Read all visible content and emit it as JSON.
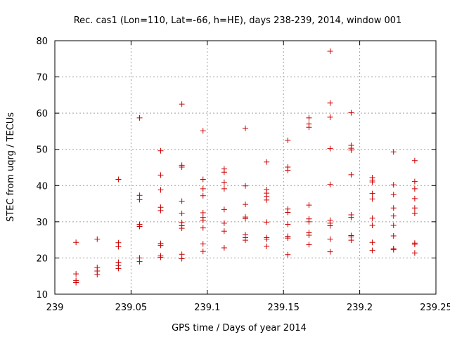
{
  "chart_data": {
    "type": "scatter",
    "title": "Rec. cas1 (Lon=110, Lat=-66, h=HE), days 238-239, 2014, window 001",
    "xlabel": "GPS time / Days of year 2014",
    "ylabel": "STEC from uqrg / TECUs",
    "xlim": [
      239,
      239.25
    ],
    "ylim": [
      10,
      80
    ],
    "xticks": [
      239,
      239.05,
      239.1,
      239.15,
      239.2,
      239.25
    ],
    "xtick_labels": [
      "239",
      "239.05",
      "239.1",
      "239.15",
      "239.2",
      "239.25"
    ],
    "yticks": [
      10,
      20,
      30,
      40,
      50,
      60,
      70,
      80
    ],
    "ytick_labels": [
      "10",
      "20",
      "30",
      "40",
      "50",
      "60",
      "70",
      "80"
    ],
    "grid": true,
    "marker": "+",
    "marker_color": "#cc0000",
    "points": [
      [
        239.0139,
        24.3
      ],
      [
        239.0139,
        15.6
      ],
      [
        239.0139,
        13.8
      ],
      [
        239.0139,
        13.2
      ],
      [
        239.0278,
        25.2
      ],
      [
        239.0278,
        17.4
      ],
      [
        239.0278,
        16.4
      ],
      [
        239.0278,
        15.4
      ],
      [
        239.0417,
        41.7
      ],
      [
        239.0417,
        24.2
      ],
      [
        239.0417,
        23.1
      ],
      [
        239.0417,
        18.8
      ],
      [
        239.0417,
        17.9
      ],
      [
        239.0417,
        17.1
      ],
      [
        239.0556,
        58.7
      ],
      [
        239.0556,
        37.3
      ],
      [
        239.0556,
        36.1
      ],
      [
        239.0556,
        29.3
      ],
      [
        239.0556,
        28.7
      ],
      [
        239.0556,
        20.0
      ],
      [
        239.0556,
        19.0
      ],
      [
        239.0694,
        49.6
      ],
      [
        239.0694,
        42.9
      ],
      [
        239.0694,
        38.8
      ],
      [
        239.0694,
        34.0
      ],
      [
        239.0694,
        33.1
      ],
      [
        239.0694,
        24.0
      ],
      [
        239.0694,
        23.5
      ],
      [
        239.0694,
        20.6
      ],
      [
        239.0694,
        20.2
      ],
      [
        239.0833,
        62.5
      ],
      [
        239.0833,
        45.6
      ],
      [
        239.0833,
        45.1
      ],
      [
        239.0833,
        35.7
      ],
      [
        239.0833,
        32.3
      ],
      [
        239.0833,
        29.8
      ],
      [
        239.0833,
        28.9
      ],
      [
        239.0833,
        28.2
      ],
      [
        239.0833,
        21.0
      ],
      [
        239.0833,
        19.8
      ],
      [
        239.0972,
        55.1
      ],
      [
        239.0972,
        41.7
      ],
      [
        239.0972,
        39.1
      ],
      [
        239.0972,
        37.2
      ],
      [
        239.0972,
        32.5
      ],
      [
        239.0972,
        31.2
      ],
      [
        239.0972,
        30.4
      ],
      [
        239.0972,
        28.3
      ],
      [
        239.0972,
        23.9
      ],
      [
        239.0972,
        21.8
      ],
      [
        239.1111,
        44.6
      ],
      [
        239.1111,
        43.7
      ],
      [
        239.1111,
        40.9
      ],
      [
        239.1111,
        39.1
      ],
      [
        239.1111,
        33.4
      ],
      [
        239.1111,
        29.6
      ],
      [
        239.1111,
        27.4
      ],
      [
        239.1111,
        22.8
      ],
      [
        239.125,
        55.8
      ],
      [
        239.125,
        39.9
      ],
      [
        239.125,
        34.8
      ],
      [
        239.125,
        31.3
      ],
      [
        239.125,
        30.9
      ],
      [
        239.125,
        26.4
      ],
      [
        239.125,
        25.6
      ],
      [
        239.125,
        24.9
      ],
      [
        239.1389,
        46.5
      ],
      [
        239.1389,
        38.9
      ],
      [
        239.1389,
        37.9
      ],
      [
        239.1389,
        37.0
      ],
      [
        239.1389,
        36.0
      ],
      [
        239.1389,
        29.9
      ],
      [
        239.1389,
        25.6
      ],
      [
        239.1389,
        25.2
      ],
      [
        239.1389,
        23.2
      ],
      [
        239.1528,
        52.5
      ],
      [
        239.1528,
        45.1
      ],
      [
        239.1528,
        44.2
      ],
      [
        239.1528,
        33.5
      ],
      [
        239.1528,
        32.6
      ],
      [
        239.1528,
        29.3
      ],
      [
        239.1528,
        26.0
      ],
      [
        239.1528,
        25.5
      ],
      [
        239.1528,
        20.9
      ],
      [
        239.1667,
        58.7
      ],
      [
        239.1667,
        57.0
      ],
      [
        239.1667,
        56.1
      ],
      [
        239.1667,
        34.6
      ],
      [
        239.1667,
        30.8
      ],
      [
        239.1667,
        30.0
      ],
      [
        239.1667,
        27.0
      ],
      [
        239.1667,
        26.3
      ],
      [
        239.1667,
        23.7
      ],
      [
        239.1806,
        77.1
      ],
      [
        239.1806,
        62.8
      ],
      [
        239.1806,
        58.9
      ],
      [
        239.1806,
        50.2
      ],
      [
        239.1806,
        40.3
      ],
      [
        239.1806,
        30.4
      ],
      [
        239.1806,
        29.6
      ],
      [
        239.1806,
        28.9
      ],
      [
        239.1806,
        25.2
      ],
      [
        239.1806,
        21.7
      ],
      [
        239.1944,
        60.1
      ],
      [
        239.1944,
        51.1
      ],
      [
        239.1944,
        50.3
      ],
      [
        239.1944,
        49.8
      ],
      [
        239.1944,
        43.0
      ],
      [
        239.1944,
        31.9
      ],
      [
        239.1944,
        31.2
      ],
      [
        239.1944,
        26.2
      ],
      [
        239.1944,
        25.8
      ],
      [
        239.1944,
        24.9
      ],
      [
        239.2083,
        42.2
      ],
      [
        239.2083,
        41.5
      ],
      [
        239.2083,
        41.0
      ],
      [
        239.2083,
        37.8
      ],
      [
        239.2083,
        36.3
      ],
      [
        239.2083,
        31.0
      ],
      [
        239.2083,
        29.0
      ],
      [
        239.2083,
        24.3
      ],
      [
        239.2083,
        22.1
      ],
      [
        239.2222,
        49.3
      ],
      [
        239.2222,
        40.2
      ],
      [
        239.2222,
        37.5
      ],
      [
        239.2222,
        33.8
      ],
      [
        239.2222,
        31.6
      ],
      [
        239.2222,
        29.0
      ],
      [
        239.2222,
        26.1
      ],
      [
        239.2222,
        22.6
      ],
      [
        239.2222,
        22.3
      ],
      [
        239.2361,
        46.9
      ],
      [
        239.2361,
        41.1
      ],
      [
        239.2361,
        39.1
      ],
      [
        239.2361,
        36.4
      ],
      [
        239.2361,
        33.8
      ],
      [
        239.2361,
        32.3
      ],
      [
        239.2361,
        24.1
      ],
      [
        239.2361,
        23.8
      ],
      [
        239.2361,
        21.4
      ]
    ]
  }
}
